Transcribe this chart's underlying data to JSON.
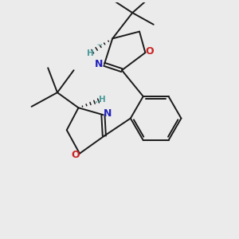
{
  "bg_color": "#ebebeb",
  "bond_color": "#1a1a1a",
  "N_color": "#2222bb",
  "O_color": "#cc2222",
  "H_stereo_color": "#4a9a9a",
  "line_width": 1.4,
  "fig_size": [
    3.0,
    3.0
  ],
  "dpi": 100,
  "xlim": [
    0,
    10
  ],
  "ylim": [
    0,
    10
  ]
}
